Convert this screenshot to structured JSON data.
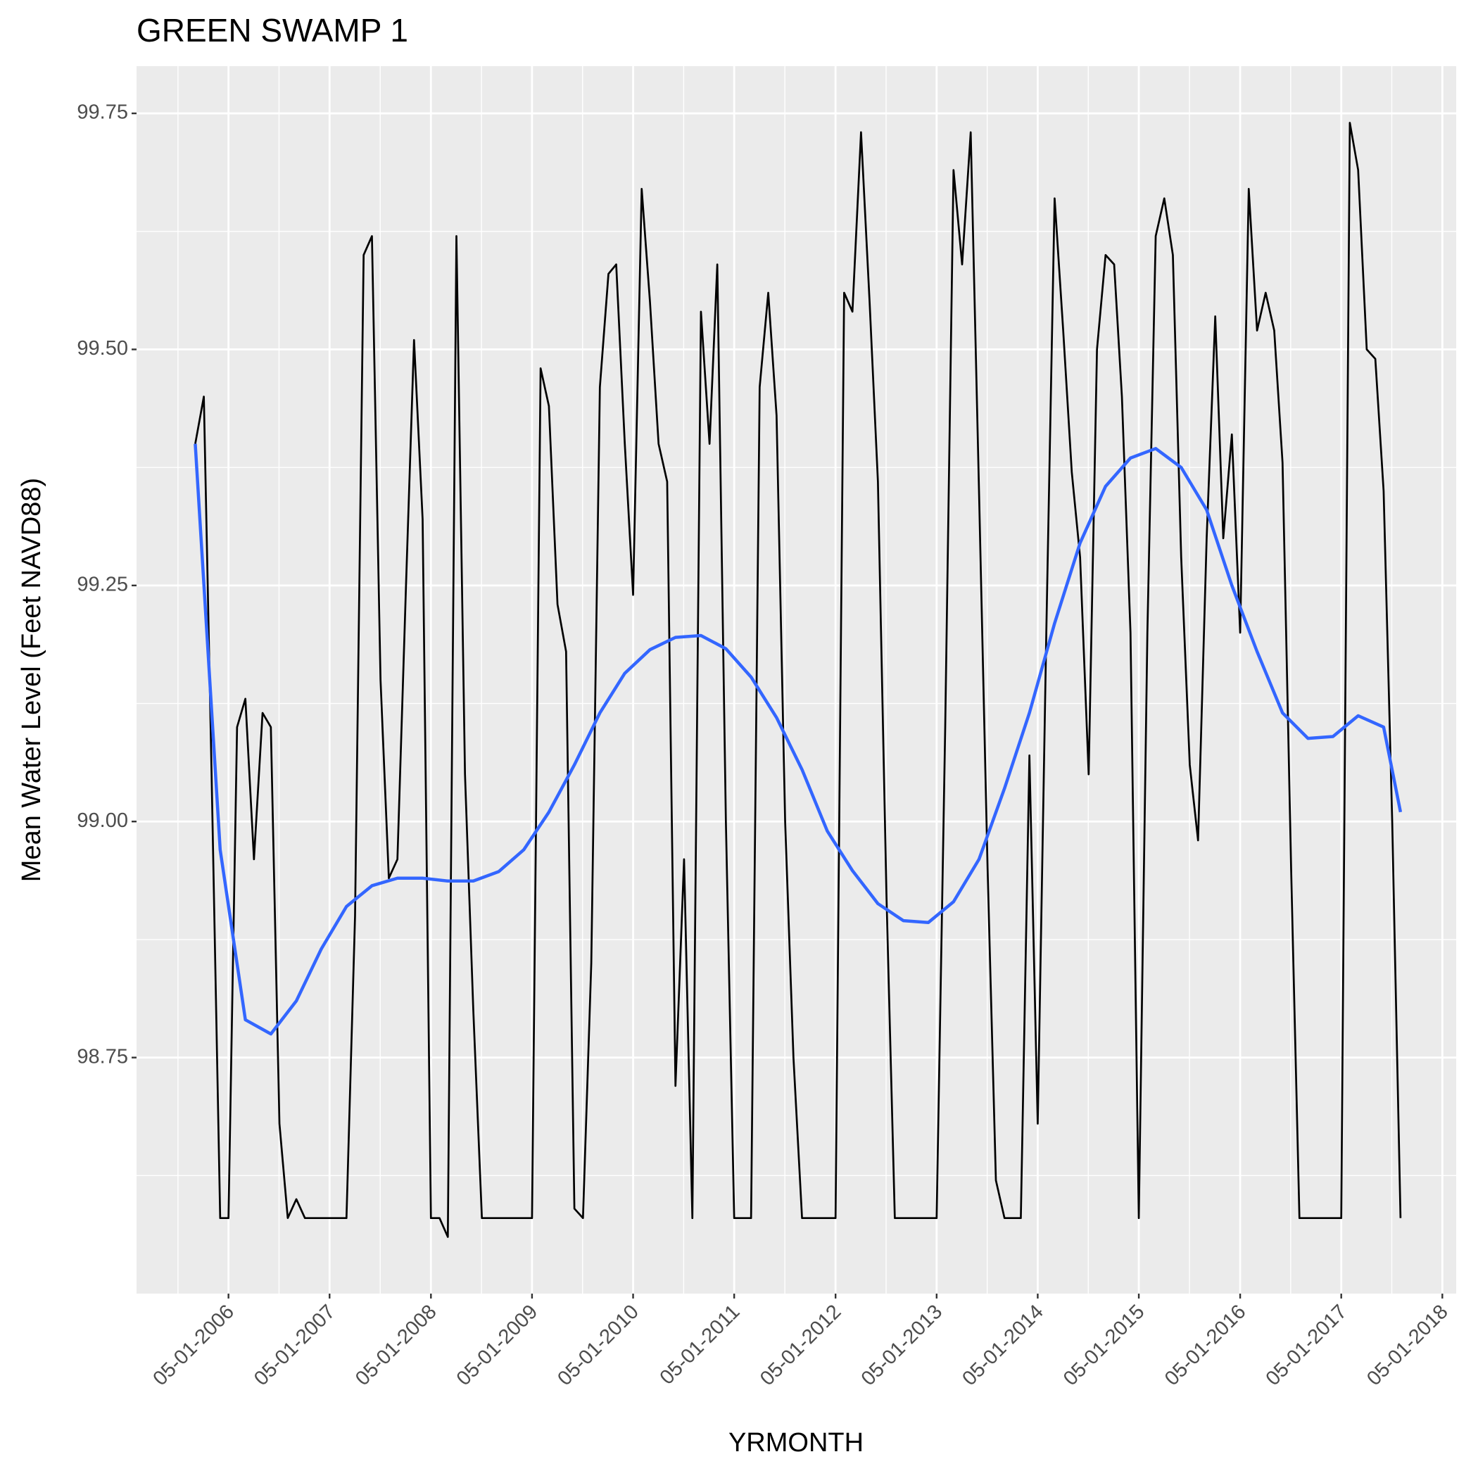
{
  "chart_data": {
    "type": "line",
    "title": "GREEN SWAMP 1",
    "x_label": "YRMONTH",
    "y_label": "Mean Water Level (Feet NAVD88)",
    "xlim": [
      "2005-06-03",
      "2018-06-20"
    ],
    "ylim": [
      98.5,
      99.8
    ],
    "xticks": [
      {
        "value": "2006-05-01",
        "label": "05-01-2006"
      },
      {
        "value": "2007-05-01",
        "label": "05-01-2007"
      },
      {
        "value": "2008-05-01",
        "label": "05-01-2008"
      },
      {
        "value": "2009-05-01",
        "label": "05-01-2009"
      },
      {
        "value": "2010-05-01",
        "label": "05-01-2010"
      },
      {
        "value": "2011-05-01",
        "label": "05-01-2011"
      },
      {
        "value": "2012-05-01",
        "label": "05-01-2012"
      },
      {
        "value": "2013-05-01",
        "label": "05-01-2013"
      },
      {
        "value": "2014-05-01",
        "label": "05-01-2014"
      },
      {
        "value": "2015-05-01",
        "label": "05-01-2015"
      },
      {
        "value": "2016-05-01",
        "label": "05-01-2016"
      },
      {
        "value": "2017-05-01",
        "label": "05-01-2017"
      },
      {
        "value": "2018-05-01",
        "label": "05-01-2018"
      }
    ],
    "yticks": [
      98.75,
      {
        "value": 99,
        "label": "99.00"
      },
      99.25,
      {
        "value": 99.5,
        "label": "99.50"
      },
      99.75
    ],
    "grid": true,
    "series": [
      {
        "color": "#000000",
        "width": 2.7,
        "x": [
          "2006-01-01",
          "2006-02-01",
          "2006-03-01",
          "2006-04-01",
          "2006-05-01",
          "2006-06-01",
          "2006-07-01",
          "2006-08-01",
          "2006-09-01",
          "2006-10-01",
          "2006-11-01",
          "2006-12-01",
          "2007-01-01",
          "2007-02-01",
          "2007-03-01",
          "2007-04-01",
          "2007-05-01",
          "2007-06-01",
          "2007-07-01",
          "2007-08-01",
          "2007-09-01",
          "2007-10-01",
          "2007-11-01",
          "2007-12-01",
          "2008-01-01",
          "2008-02-01",
          "2008-03-01",
          "2008-04-01",
          "2008-05-01",
          "2008-06-01",
          "2008-07-01",
          "2008-08-01",
          "2008-09-01",
          "2008-10-01",
          "2008-11-01",
          "2008-12-01",
          "2009-01-01",
          "2009-02-01",
          "2009-03-01",
          "2009-04-01",
          "2009-05-01",
          "2009-06-01",
          "2009-07-01",
          "2009-08-01",
          "2009-09-01",
          "2009-10-01",
          "2009-11-01",
          "2009-12-01",
          "2010-01-01",
          "2010-02-01",
          "2010-03-01",
          "2010-04-01",
          "2010-05-01",
          "2010-06-01",
          "2010-07-01",
          "2010-08-01",
          "2010-09-01",
          "2010-10-01",
          "2010-11-01",
          "2010-12-01",
          "2011-01-01",
          "2011-02-01",
          "2011-03-01",
          "2011-04-01",
          "2011-05-01",
          "2011-06-01",
          "2011-07-01",
          "2011-08-01",
          "2011-09-01",
          "2011-10-01",
          "2011-11-01",
          "2011-12-01",
          "2012-01-01",
          "2012-02-01",
          "2012-03-01",
          "2012-04-01",
          "2012-05-01",
          "2012-06-01",
          "2012-07-01",
          "2012-08-01",
          "2012-09-01",
          "2012-10-01",
          "2012-11-01",
          "2012-12-01",
          "2013-01-01",
          "2013-02-01",
          "2013-03-01",
          "2013-04-01",
          "2013-05-01",
          "2013-06-01",
          "2013-07-01",
          "2013-08-01",
          "2013-09-01",
          "2013-10-01",
          "2013-11-01",
          "2013-12-01",
          "2014-01-01",
          "2014-02-01",
          "2014-03-01",
          "2014-04-01",
          "2014-05-01",
          "2014-06-01",
          "2014-07-01",
          "2014-08-01",
          "2014-09-01",
          "2014-10-01",
          "2014-11-01",
          "2014-12-01",
          "2015-01-01",
          "2015-02-01",
          "2015-03-01",
          "2015-04-01",
          "2015-05-01",
          "2015-06-01",
          "2015-07-01",
          "2015-08-01",
          "2015-09-01",
          "2015-10-01",
          "2015-11-01",
          "2015-12-01",
          "2016-01-01",
          "2016-02-01",
          "2016-03-01",
          "2016-04-01",
          "2016-05-01",
          "2016-06-01",
          "2016-07-01",
          "2016-08-01",
          "2016-09-01",
          "2016-10-01",
          "2016-11-01",
          "2016-12-01",
          "2017-01-01",
          "2017-02-01",
          "2017-03-01",
          "2017-04-01",
          "2017-05-01",
          "2017-06-01",
          "2017-07-01",
          "2017-08-01",
          "2017-09-01",
          "2017-10-01",
          "2017-11-01",
          "2017-12-01"
        ],
        "values": [
          99.4,
          99.45,
          99.05,
          98.58,
          98.58,
          99.1,
          99.13,
          98.96,
          99.115,
          99.1,
          98.68,
          98.58,
          98.6,
          98.58,
          98.58,
          98.58,
          98.58,
          98.58,
          98.58,
          98.9,
          99.6,
          99.62,
          99.15,
          98.94,
          98.96,
          99.25,
          99.51,
          99.32,
          98.58,
          98.58,
          98.56,
          99.62,
          99.05,
          98.8,
          98.58,
          98.58,
          98.58,
          98.58,
          98.58,
          98.58,
          98.58,
          99.48,
          99.44,
          99.23,
          99.18,
          98.59,
          98.58,
          98.85,
          99.46,
          99.58,
          99.59,
          99.4,
          99.24,
          99.67,
          99.55,
          99.4,
          99.36,
          98.72,
          98.96,
          98.58,
          99.54,
          99.4,
          99.59,
          99.0,
          98.58,
          98.58,
          98.58,
          99.46,
          99.56,
          99.43,
          99.0,
          98.75,
          98.58,
          98.58,
          98.58,
          98.58,
          98.58,
          99.56,
          99.54,
          99.73,
          99.55,
          99.36,
          98.92,
          98.58,
          98.58,
          98.58,
          98.58,
          98.58,
          98.58,
          99.1,
          99.69,
          99.59,
          99.73,
          99.35,
          98.95,
          98.62,
          98.58,
          98.58,
          98.58,
          99.07,
          98.68,
          99.2,
          99.66,
          99.52,
          99.37,
          99.28,
          99.05,
          99.5,
          99.6,
          99.59,
          99.45,
          99.2,
          98.58,
          99.2,
          99.62,
          99.66,
          99.6,
          99.28,
          99.06,
          98.98,
          99.3,
          99.535,
          99.3,
          99.41,
          99.2,
          99.67,
          99.52,
          99.56,
          99.52,
          99.38,
          98.95,
          98.58,
          98.58,
          98.58,
          98.58,
          98.58,
          98.58,
          99.74,
          99.69,
          99.5,
          99.49,
          99.35,
          99.0,
          98.58
        ]
      },
      {
        "color": "#3366ff",
        "width": 4.5,
        "x": [
          "2006-01-01",
          "2006-04-01",
          "2006-07-01",
          "2006-10-01",
          "2007-01-01",
          "2007-04-01",
          "2007-07-01",
          "2007-10-01",
          "2008-01-01",
          "2008-04-01",
          "2008-07-01",
          "2008-10-01",
          "2009-01-01",
          "2009-04-01",
          "2009-07-01",
          "2009-10-01",
          "2010-01-01",
          "2010-04-01",
          "2010-07-01",
          "2010-10-01",
          "2011-01-01",
          "2011-04-01",
          "2011-07-01",
          "2011-10-01",
          "2012-01-01",
          "2012-04-01",
          "2012-07-01",
          "2012-10-01",
          "2013-01-01",
          "2013-04-01",
          "2013-07-01",
          "2013-10-01",
          "2014-01-01",
          "2014-04-01",
          "2014-07-01",
          "2014-10-01",
          "2015-01-01",
          "2015-04-01",
          "2015-07-01",
          "2015-10-01",
          "2016-01-01",
          "2016-04-01",
          "2016-07-01",
          "2016-10-01",
          "2017-01-01",
          "2017-04-01",
          "2017-07-01",
          "2017-10-01",
          "2017-12-01"
        ],
        "values": [
          99.4,
          98.97,
          98.79,
          98.775,
          98.81,
          98.865,
          98.91,
          98.932,
          98.94,
          98.94,
          98.937,
          98.937,
          98.947,
          98.97,
          99.01,
          99.06,
          99.115,
          99.157,
          99.182,
          99.195,
          99.197,
          99.183,
          99.153,
          99.11,
          99.055,
          98.99,
          98.948,
          98.913,
          98.895,
          98.893,
          98.915,
          98.96,
          99.035,
          99.115,
          99.21,
          99.295,
          99.355,
          99.385,
          99.395,
          99.375,
          99.33,
          99.25,
          99.18,
          99.115,
          99.088,
          99.09,
          99.112,
          99.1,
          99.01
        ]
      }
    ]
  }
}
